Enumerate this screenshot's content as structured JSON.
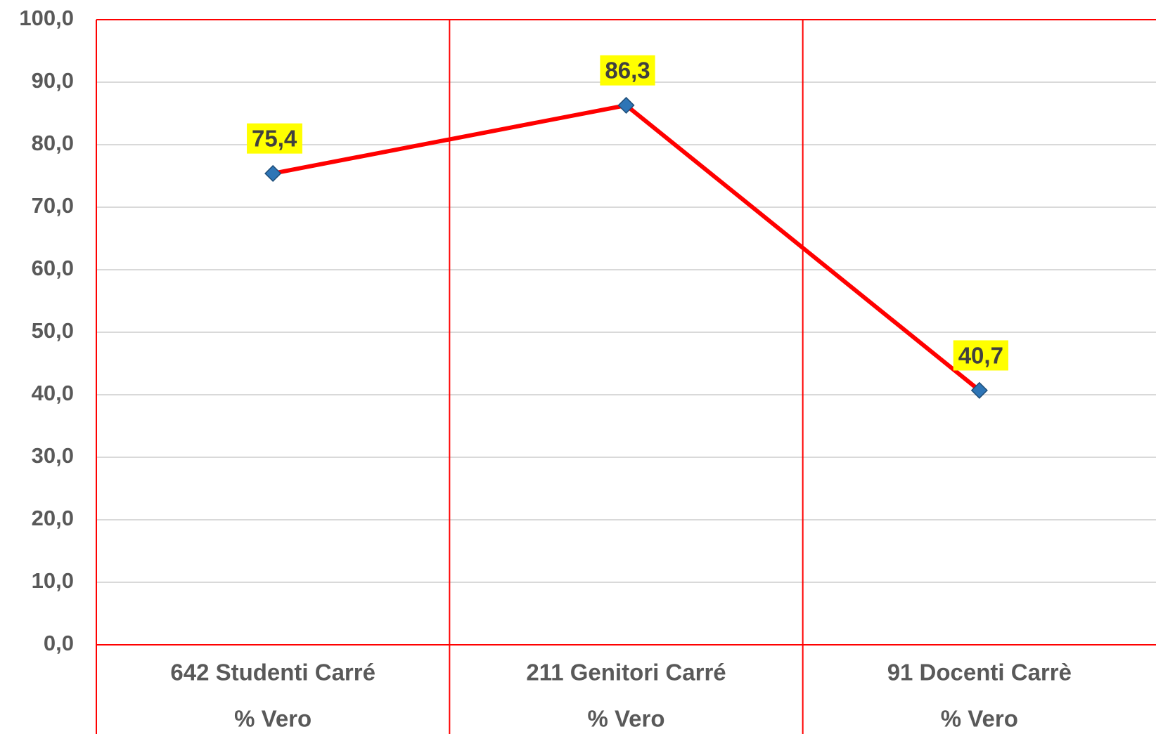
{
  "chart_data": {
    "type": "line",
    "categories": [
      [
        "642 Studenti Carré",
        "% Vero"
      ],
      [
        "211 Genitori Carré",
        "% Vero"
      ],
      [
        "91 Docenti Carrè",
        "% Vero"
      ]
    ],
    "series": [
      {
        "color": "#ff0000",
        "marker_color": "#2e75b6",
        "values": [
          75.4,
          86.3,
          40.7
        ],
        "value_labels": [
          "75,4",
          "86,3",
          "40,7"
        ]
      }
    ],
    "ylim": [
      0,
      100
    ],
    "yticks": [
      {
        "value": 0,
        "label": "0,0"
      },
      {
        "value": 10,
        "label": "10,0"
      },
      {
        "value": 20,
        "label": "20,0"
      },
      {
        "value": 30,
        "label": "30,0"
      },
      {
        "value": 40,
        "label": "40,0"
      },
      {
        "value": 50,
        "label": "50,0"
      },
      {
        "value": 60,
        "label": "60,0"
      },
      {
        "value": 70,
        "label": "70,0"
      },
      {
        "value": 80,
        "label": "80,0"
      },
      {
        "value": 90,
        "label": "90,0"
      },
      {
        "value": 100,
        "label": "100,0"
      }
    ],
    "grid": true
  }
}
